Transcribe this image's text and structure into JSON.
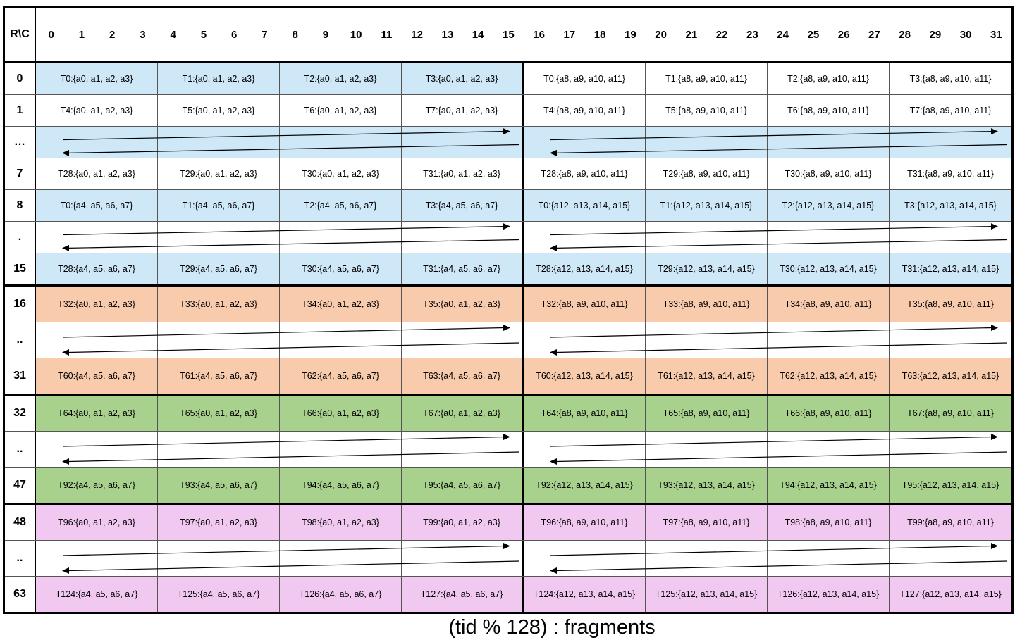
{
  "corner": "R\\C",
  "caption": "(tid % 128) : fragments",
  "columns": [
    "0",
    "1",
    "2",
    "3",
    "4",
    "5",
    "6",
    "7",
    "8",
    "9",
    "10",
    "11",
    "12",
    "13",
    "14",
    "15",
    "16",
    "17",
    "18",
    "19",
    "20",
    "21",
    "22",
    "23",
    "24",
    "25",
    "26",
    "27",
    "28",
    "29",
    "30",
    "31"
  ],
  "colors": {
    "blue": "#cfe8f8",
    "orange": "#f8cbad",
    "green": "#a9d18e",
    "pink": "#f1c9f0",
    "white": "#ffffff",
    "grid": "#555555",
    "heavy": "#000000"
  },
  "rows": [
    {
      "label": "0",
      "type": "cells",
      "left_bg": "blue",
      "right_bg": "white",
      "cells": [
        "T0:{a0, a1, a2, a3}",
        "T1:{a0, a1, a2, a3}",
        "T2:{a0, a1, a2, a3}",
        "T3:{a0, a1, a2, a3}",
        "T0:{a8, a9, a10, a11}",
        "T1:{a8, a9, a10, a11}",
        "T2:{a8, a9, a10, a11}",
        "T3:{a8, a9, a10, a11}"
      ]
    },
    {
      "label": "1",
      "type": "cells",
      "left_bg": "white",
      "right_bg": "white",
      "cells": [
        "T4:{a0, a1, a2, a3}",
        "T5:{a0, a1, a2, a3}",
        "T6:{a0, a1, a2, a3}",
        "T7:{a0, a1, a2, a3}",
        "T4:{a8, a9, a10, a11}",
        "T5:{a8, a9, a10, a11}",
        "T6:{a8, a9, a10, a11}",
        "T7:{a8, a9, a10, a11}"
      ]
    },
    {
      "label": "…",
      "type": "arrows",
      "left_bg": "blue",
      "right_bg": "blue",
      "cells": [
        "",
        "",
        "",
        "",
        "",
        "",
        "",
        ""
      ]
    },
    {
      "label": "7",
      "type": "cells",
      "left_bg": "white",
      "right_bg": "white",
      "cells": [
        "T28:{a0, a1, a2, a3}",
        "T29:{a0, a1, a2, a3}",
        "T30:{a0, a1, a2, a3}",
        "T31:{a0, a1, a2, a3}",
        "T28:{a8, a9, a10, a11}",
        "T29:{a8, a9, a10, a11}",
        "T30:{a8, a9, a10, a11}",
        "T31:{a8, a9, a10, a11}"
      ]
    },
    {
      "label": "8",
      "type": "cells",
      "left_bg": "blue",
      "right_bg": "blue",
      "cells": [
        "T0:{a4, a5, a6, a7}",
        "T1:{a4, a5, a6, a7}",
        "T2:{a4, a5, a6, a7}",
        "T3:{a4, a5, a6, a7}",
        "T0:{a12, a13, a14, a15}",
        "T1:{a12, a13, a14, a15}",
        "T2:{a12, a13, a14, a15}",
        "T3:{a12, a13, a14, a15}"
      ]
    },
    {
      "label": ".",
      "type": "arrows",
      "left_bg": "white",
      "right_bg": "white",
      "cells": [
        "",
        "",
        "",
        "",
        "",
        "",
        "",
        ""
      ]
    },
    {
      "label": "15",
      "type": "cells",
      "left_bg": "blue",
      "right_bg": "blue",
      "cells": [
        "T28:{a4, a5, a6, a7}",
        "T29:{a4, a5, a6, a7}",
        "T30:{a4, a5, a6, a7}",
        "T31:{a4, a5, a6, a7}",
        "T28:{a12, a13, a14, a15}",
        "T29:{a12, a13, a14, a15}",
        "T30:{a12, a13, a14, a15}",
        "T31:{a12, a13, a14, a15}"
      ]
    },
    {
      "label": "16",
      "type": "cells",
      "left_bg": "orange",
      "right_bg": "orange",
      "cells": [
        "T32:{a0, a1, a2, a3}",
        "T33:{a0, a1, a2, a3}",
        "T34:{a0, a1, a2, a3}",
        "T35:{a0, a1, a2, a3}",
        "T32:{a8, a9, a10, a11}",
        "T33:{a8, a9, a10, a11}",
        "T34:{a8, a9, a10, a11}",
        "T35:{a8, a9, a10, a11}"
      ]
    },
    {
      "label": "..",
      "type": "arrows",
      "left_bg": "white",
      "right_bg": "white",
      "cells": [
        "",
        "",
        "",
        "",
        "",
        "",
        "",
        ""
      ]
    },
    {
      "label": "31",
      "type": "cells",
      "left_bg": "orange",
      "right_bg": "orange",
      "cells": [
        "T60:{a4, a5, a6, a7}",
        "T61:{a4, a5, a6, a7}",
        "T62:{a4, a5, a6, a7}",
        "T63:{a4, a5, a6, a7}",
        "T60:{a12, a13, a14, a15}",
        "T61:{a12, a13, a14, a15}",
        "T62:{a12, a13, a14, a15}",
        "T63:{a12, a13, a14, a15}"
      ]
    },
    {
      "label": "32",
      "type": "cells",
      "left_bg": "green",
      "right_bg": "green",
      "cells": [
        "T64:{a0, a1, a2, a3}",
        "T65:{a0, a1, a2, a3}",
        "T66:{a0, a1, a2, a3}",
        "T67:{a0, a1, a2, a3}",
        "T64:{a8, a9, a10, a11}",
        "T65:{a8, a9, a10, a11}",
        "T66:{a8, a9, a10, a11}",
        "T67:{a8, a9, a10, a11}"
      ]
    },
    {
      "label": "..",
      "type": "arrows",
      "left_bg": "white",
      "right_bg": "white",
      "cells": [
        "",
        "",
        "",
        "",
        "",
        "",
        "",
        ""
      ]
    },
    {
      "label": "47",
      "type": "cells",
      "left_bg": "green",
      "right_bg": "green",
      "cells": [
        "T92:{a4, a5, a6, a7}",
        "T93:{a4, a5, a6, a7}",
        "T94:{a4, a5, a6, a7}",
        "T95:{a4, a5, a6, a7}",
        "T92:{a12, a13, a14, a15}",
        "T93:{a12, a13, a14, a15}",
        "T94:{a12, a13, a14, a15}",
        "T95:{a12, a13, a14, a15}"
      ]
    },
    {
      "label": "48",
      "type": "cells",
      "left_bg": "pink",
      "right_bg": "pink",
      "cells": [
        "T96:{a0, a1, a2, a3}",
        "T97:{a0, a1, a2, a3}",
        "T98:{a0, a1, a2, a3}",
        "T99:{a0, a1, a2, a3}",
        "T96:{a8, a9, a10, a11}",
        "T97:{a8, a9, a10, a11}",
        "T98:{a8, a9, a10, a11}",
        "T99:{a8, a9, a10, a11}"
      ]
    },
    {
      "label": "..",
      "type": "arrows",
      "left_bg": "white",
      "right_bg": "white",
      "cells": [
        "",
        "",
        "",
        "",
        "",
        "",
        "",
        ""
      ]
    },
    {
      "label": "63",
      "type": "cells",
      "left_bg": "pink",
      "right_bg": "pink",
      "cells": [
        "T124:{a4, a5, a6, a7}",
        "T125:{a4, a5, a6, a7}",
        "T126:{a4, a5, a6, a7}",
        "T127:{a4, a5, a6, a7}",
        "T124:{a12, a13, a14, a15}",
        "T125:{a12, a13, a14, a15}",
        "T126:{a12, a13, a14, a15}",
        "T127:{a12, a13, a14, a15}"
      ]
    }
  ]
}
